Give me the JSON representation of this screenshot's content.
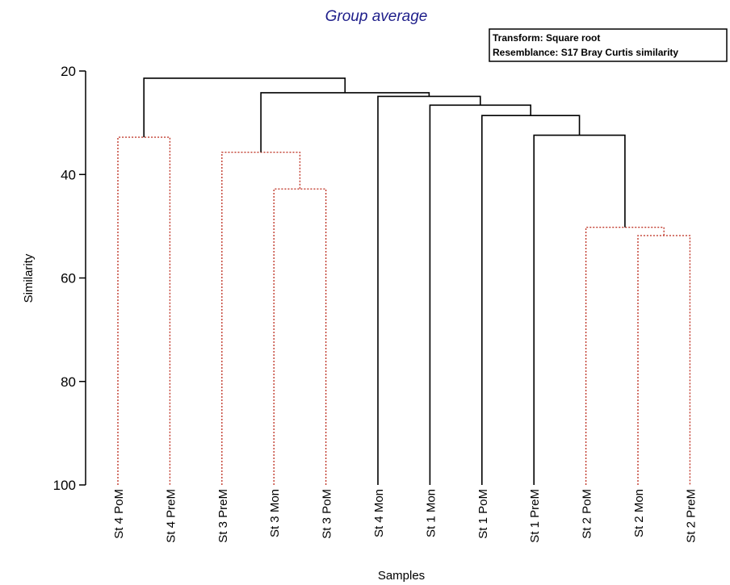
{
  "chart_data": {
    "type": "dendrogram",
    "title": "Group average",
    "legend": [
      "Transform: Square root",
      "Resemblance: S17 Bray Curtis similarity"
    ],
    "legend_position": "top-right",
    "xlabel": "Samples",
    "ylabel": "Similarity",
    "ylim": [
      100,
      20
    ],
    "yticks": [
      20,
      40,
      60,
      80,
      100
    ],
    "leaves": [
      "St 4 PoM",
      "St 4 PreM",
      "St 3 PreM",
      "St 3 Mon",
      "St 3 PoM",
      "St 4 Mon",
      "St 1 Mon",
      "St 1 PoM",
      "St 1 PreM",
      "St 2 PoM",
      "St 2 Mon",
      "St 2 PreM"
    ],
    "merges": [
      {
        "left": "L0",
        "right": "L1",
        "similarity": 32.8,
        "significant": false
      },
      {
        "left": "L3",
        "right": "L4",
        "similarity": 42.8,
        "significant": false
      },
      {
        "left": "L2",
        "right": "N1",
        "similarity": 35.7,
        "significant": false
      },
      {
        "left": "L10",
        "right": "L11",
        "similarity": 51.8,
        "significant": false
      },
      {
        "left": "L9",
        "right": "N3",
        "similarity": 50.2,
        "significant": false
      },
      {
        "left": "L8",
        "right": "N4",
        "similarity": 32.4,
        "significant": true
      },
      {
        "left": "L7",
        "right": "N5",
        "similarity": 28.6,
        "significant": true
      },
      {
        "left": "L6",
        "right": "N6",
        "similarity": 26.6,
        "significant": true
      },
      {
        "left": "L5",
        "right": "N7",
        "similarity": 24.9,
        "significant": true
      },
      {
        "left": "N2",
        "right": "N8",
        "similarity": 24.2,
        "significant": true
      },
      {
        "left": "N0",
        "right": "N9",
        "similarity": 21.4,
        "significant": true
      }
    ],
    "colors": {
      "significant": "#000000",
      "not_significant": "#c0392b",
      "title": "#1e1e8a"
    },
    "grid": false
  }
}
